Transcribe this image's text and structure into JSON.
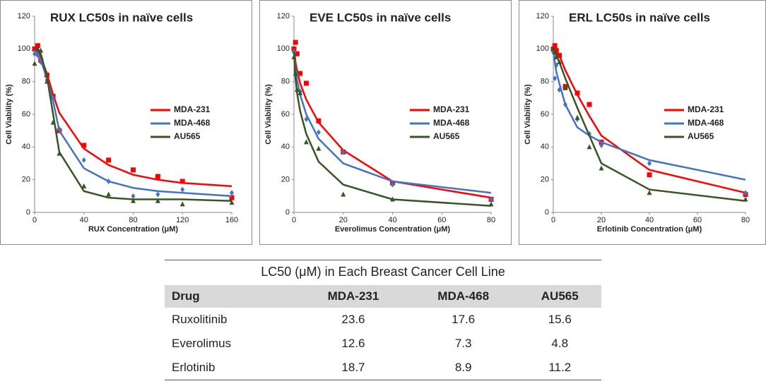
{
  "chart_data": [
    {
      "type": "line",
      "title": "RUX LC50s in naïve cells",
      "xlabel": "RUX Concentration (μM)",
      "ylabel": "Cell Viability (%)",
      "xlim": [
        0,
        160
      ],
      "xticks": [
        0,
        40,
        80,
        120,
        160
      ],
      "ylim": [
        0,
        120
      ],
      "yticks": [
        0,
        20,
        40,
        60,
        80,
        100,
        120
      ],
      "legend": "right",
      "series": [
        {
          "name": "MDA-231",
          "color": "#ff0000",
          "marker": "square",
          "x": [
            0,
            2.5,
            5,
            10,
            15,
            20,
            40,
            60,
            80,
            100,
            120,
            160
          ],
          "values": [
            100,
            102,
            93,
            84,
            71,
            50,
            41,
            32,
            26,
            22,
            19,
            9
          ],
          "fit": [
            100,
            98,
            95,
            85,
            72,
            61,
            39,
            29,
            23,
            20,
            18,
            16
          ]
        },
        {
          "name": "MDA-468",
          "color": "#4472c4",
          "marker": "diamond",
          "x": [
            0,
            2.5,
            5,
            10,
            15,
            20,
            40,
            60,
            80,
            100,
            120,
            160
          ],
          "values": [
            97,
            96,
            92,
            81,
            70,
            51,
            32,
            19,
            10,
            11,
            14,
            12
          ],
          "fit": [
            100,
            97,
            93,
            82,
            68,
            50,
            27,
            19,
            15,
            13,
            12,
            10
          ]
        },
        {
          "name": "AU565",
          "color": "#375623",
          "marker": "triangle",
          "x": [
            0,
            2.5,
            5,
            10,
            15,
            20,
            40,
            60,
            80,
            100,
            120,
            160
          ],
          "values": [
            91,
            100,
            99,
            80,
            55,
            36,
            16,
            11,
            7,
            7,
            5,
            6
          ],
          "fit": [
            100,
            99,
            97,
            83,
            60,
            37,
            13,
            9,
            8,
            8,
            8,
            7
          ]
        }
      ]
    },
    {
      "type": "line",
      "title": "EVE LC50s in naïve cells",
      "xlabel": "Everolimus Concentration (μM)",
      "ylabel": "Cell Viability (%)",
      "xlim": [
        0,
        80
      ],
      "xticks": [
        0,
        20,
        40,
        60,
        80
      ],
      "ylim": [
        0,
        120
      ],
      "yticks": [
        0,
        20,
        40,
        60,
        80,
        100,
        120
      ],
      "legend": "right",
      "series": [
        {
          "name": "MDA-231",
          "color": "#ff0000",
          "marker": "square",
          "x": [
            0,
            0.625,
            1.25,
            2.5,
            5,
            10,
            20,
            40,
            80
          ],
          "values": [
            100,
            104,
            97,
            85,
            79,
            56,
            37,
            18,
            8
          ],
          "fit": [
            100,
            92,
            87,
            79,
            69,
            55,
            38,
            19,
            9
          ]
        },
        {
          "name": "MDA-468",
          "color": "#4472c4",
          "marker": "diamond",
          "x": [
            0,
            0.625,
            1.25,
            2.5,
            5,
            10,
            20,
            40,
            80
          ],
          "values": [
            98,
            86,
            84,
            74,
            57,
            49,
            37,
            17,
            8
          ],
          "fit": [
            100,
            88,
            81,
            72,
            60,
            45,
            30,
            19,
            12
          ]
        },
        {
          "name": "AU565",
          "color": "#375623",
          "marker": "triangle",
          "x": [
            0,
            0.625,
            1.25,
            2.5,
            5,
            10,
            20,
            40,
            80
          ],
          "values": [
            95,
            85,
            75,
            73,
            43,
            39,
            11,
            8,
            5
          ],
          "fit": [
            98,
            82,
            73,
            62,
            48,
            31,
            17,
            8,
            4
          ]
        }
      ]
    },
    {
      "type": "line",
      "title": "ERL LC50s in naïve cells",
      "xlabel": "Erlotinib Concentration (μM)",
      "ylabel": "Cell Viability (%)",
      "xlim": [
        0,
        80
      ],
      "xticks": [
        0,
        20,
        40,
        60,
        80
      ],
      "ylim": [
        0,
        120
      ],
      "yticks": [
        0,
        20,
        40,
        60,
        80,
        100,
        120
      ],
      "legend": "right",
      "series": [
        {
          "name": "MDA-231",
          "color": "#ff0000",
          "marker": "square",
          "x": [
            0,
            0.625,
            1.25,
            2.5,
            5,
            10,
            15,
            20,
            40,
            80
          ],
          "values": [
            100,
            102,
            99,
            96,
            77,
            73,
            66,
            43,
            23,
            11
          ],
          "fit": [
            100,
            99,
            98,
            96,
            87,
            72,
            59,
            47,
            26,
            12
          ]
        },
        {
          "name": "MDA-468",
          "color": "#4472c4",
          "marker": "diamond",
          "x": [
            0,
            0.625,
            1.25,
            2.5,
            5,
            10,
            15,
            20,
            40,
            80
          ],
          "values": [
            98,
            82,
            90,
            75,
            66,
            57,
            48,
            41,
            30,
            12
          ],
          "fit": [
            100,
            92,
            86,
            79,
            66,
            52,
            47,
            43,
            32,
            20
          ]
        },
        {
          "name": "AU565",
          "color": "#375623",
          "marker": "triangle",
          "x": [
            0,
            0.625,
            1.25,
            2.5,
            5,
            10,
            15,
            20,
            40,
            80
          ],
          "values": [
            100,
            98,
            95,
            92,
            76,
            58,
            40,
            27,
            12,
            8
          ],
          "fit": [
            100,
            98,
            96,
            92,
            82,
            64,
            47,
            30,
            14,
            7
          ]
        }
      ]
    }
  ],
  "table": {
    "title": "LC50 (μM) in Each Breast Cancer Cell Line",
    "columns": [
      "Drug",
      "MDA-231",
      "MDA-468",
      "AU565"
    ],
    "rows": [
      [
        "Ruxolitinib",
        23.6,
        17.6,
        15.6
      ],
      [
        "Everolimus",
        12.6,
        7.3,
        4.8
      ],
      [
        "Erlotinib",
        18.7,
        8.9,
        11.2
      ]
    ]
  }
}
